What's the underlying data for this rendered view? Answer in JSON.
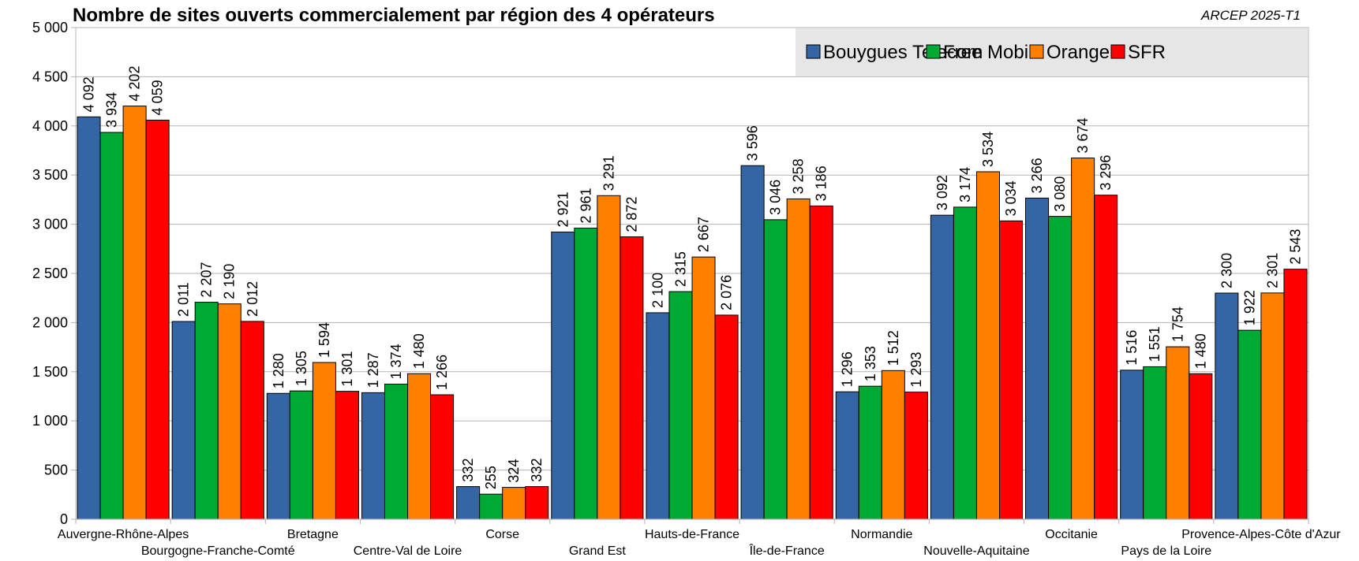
{
  "chart_data": {
    "type": "bar",
    "title": "Nombre de sites ouverts commercialement par région des 4 opérateurs",
    "source": "ARCEP 2025-T1",
    "xlabel": "",
    "ylabel": "",
    "ylim": [
      0,
      5000
    ],
    "yticks": [
      0,
      500,
      1000,
      1500,
      2000,
      2500,
      3000,
      3500,
      4000,
      4500,
      5000
    ],
    "ytick_labels": [
      "0",
      "500",
      "1 000",
      "1 500",
      "2 000",
      "2 500",
      "3 000",
      "3 500",
      "4 000",
      "4 500",
      "5 000"
    ],
    "grid": true,
    "legend_position": "top-right",
    "categories": [
      "Auvergne-Rhône-Alpes",
      "Bourgogne-Franche-Comté",
      "Bretagne",
      "Centre-Val de Loire",
      "Corse",
      "Grand Est",
      "Hauts-de-France",
      "Île-de-France",
      "Normandie",
      "Nouvelle-Aquitaine",
      "Occitanie",
      "Pays de la Loire",
      "Provence-Alpes-Côte d'Azur"
    ],
    "series": [
      {
        "name": "Bouygues Telecom",
        "color": "#3465a4",
        "values": [
          4092,
          2011,
          1280,
          1287,
          332,
          2921,
          2100,
          3596,
          1296,
          3092,
          3266,
          1516,
          2300
        ],
        "labels": [
          "4 092",
          "2 011",
          "1 280",
          "1 287",
          "332",
          "2 921",
          "2 100",
          "3 596",
          "1 296",
          "3 092",
          "3 266",
          "1 516",
          "2 300"
        ]
      },
      {
        "name": "Free Mobile",
        "color": "#00a933",
        "values": [
          3934,
          2207,
          1305,
          1374,
          255,
          2961,
          2315,
          3046,
          1353,
          3174,
          3080,
          1551,
          1922
        ],
        "labels": [
          "3 934",
          "2 207",
          "1 305",
          "1 374",
          "255",
          "2 961",
          "2 315",
          "3 046",
          "1 353",
          "3 174",
          "3 080",
          "1 551",
          "1 922"
        ]
      },
      {
        "name": "Orange",
        "color": "#ff8000",
        "values": [
          4202,
          2190,
          1594,
          1480,
          324,
          3291,
          2667,
          3258,
          1512,
          3534,
          3674,
          1754,
          2301
        ],
        "labels": [
          "4 202",
          "2 190",
          "1 594",
          "1 480",
          "324",
          "3 291",
          "2 667",
          "3 258",
          "1 512",
          "3 534",
          "3 674",
          "1 754",
          "2 301"
        ]
      },
      {
        "name": "SFR",
        "color": "#ff0000",
        "values": [
          4059,
          2012,
          1301,
          1266,
          332,
          2872,
          2076,
          3186,
          1293,
          3034,
          3296,
          1480,
          2543
        ],
        "labels": [
          "4 059",
          "2 012",
          "1 301",
          "1 266",
          "332",
          "2 872",
          "2 076",
          "3 186",
          "1 293",
          "3 034",
          "3 296",
          "1 480",
          "2 543"
        ]
      }
    ]
  }
}
